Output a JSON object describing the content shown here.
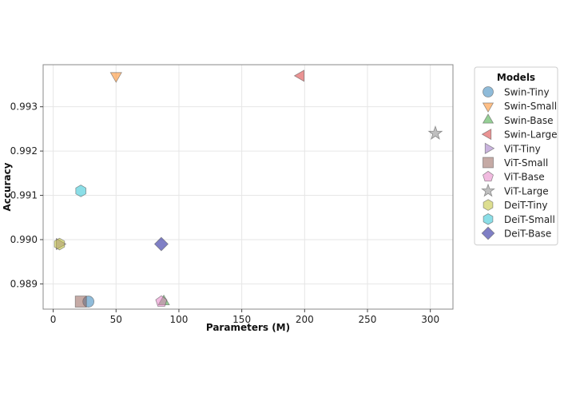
{
  "chart_data": {
    "type": "scatter",
    "title": "",
    "xlabel": "Parameters (M)",
    "ylabel": "Accuracy",
    "xlim": [
      -8,
      318
    ],
    "ylim": [
      0.98843,
      0.99395
    ],
    "xticks": [
      0,
      50,
      100,
      150,
      200,
      250,
      300
    ],
    "yticks": [
      0.989,
      0.99,
      0.991,
      0.992,
      0.993
    ],
    "ytick_labels": [
      "0.989",
      "0.990",
      "0.991",
      "0.992",
      "0.993"
    ],
    "grid": true,
    "legend": {
      "title": "Models",
      "placement": "outside-right"
    },
    "series": [
      {
        "name": "Swin-Tiny",
        "marker": "circle",
        "color": "#1f77b4",
        "x": 28,
        "y": 0.9886
      },
      {
        "name": "Swin-Small",
        "marker": "triangle-down",
        "color": "#ff7f0e",
        "x": 50,
        "y": 0.9937
      },
      {
        "name": "Swin-Base",
        "marker": "triangle-up",
        "color": "#2ca02c",
        "x": 88,
        "y": 0.9886
      },
      {
        "name": "Swin-Large",
        "marker": "triangle-left",
        "color": "#d62728",
        "x": 197,
        "y": 0.9937
      },
      {
        "name": "ViT-Tiny",
        "marker": "triangle-right",
        "color": "#9467bd",
        "x": 5,
        "y": 0.9899
      },
      {
        "name": "ViT-Small",
        "marker": "square",
        "color": "#8c564b",
        "x": 22,
        "y": 0.9886
      },
      {
        "name": "ViT-Base",
        "marker": "pentagon",
        "color": "#e377c2",
        "x": 86,
        "y": 0.9886
      },
      {
        "name": "ViT-Large",
        "marker": "star",
        "color": "#7f7f7f",
        "x": 304,
        "y": 0.9924
      },
      {
        "name": "DeiT-Tiny",
        "marker": "hexagon",
        "color": "#bcbd22",
        "x": 5,
        "y": 0.9899
      },
      {
        "name": "DeiT-Small",
        "marker": "hexagon",
        "color": "#17becf",
        "x": 22,
        "y": 0.9911
      },
      {
        "name": "DeiT-Base",
        "marker": "diamond",
        "color": "#00008b",
        "x": 86,
        "y": 0.9899
      }
    ]
  }
}
